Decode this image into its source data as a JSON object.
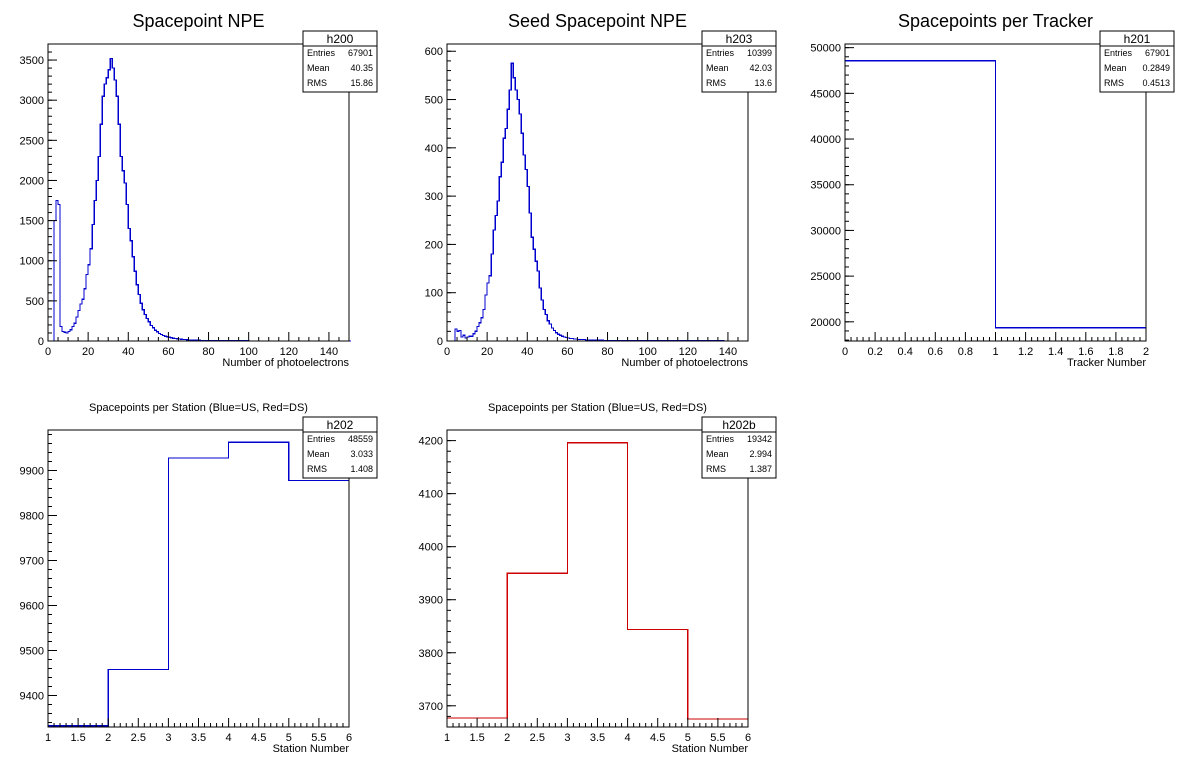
{
  "chart_data": [
    {
      "type": "histogram",
      "title": "Spacepoint NPE",
      "xlabel": "Number of photoelectrons",
      "ylabel": "",
      "xlim": [
        0,
        150
      ],
      "ylim": [
        0,
        3700
      ],
      "xticks": [
        "0",
        "20",
        "40",
        "60",
        "80",
        "100",
        "120",
        "140"
      ],
      "yticks": [
        "0",
        "500",
        "1000",
        "1500",
        "2000",
        "2500",
        "3000",
        "3500"
      ],
      "line_color": "#0000cc",
      "bin_width": 1.0,
      "x_start": 0,
      "values": [
        0,
        0,
        0,
        1500,
        1750,
        1700,
        180,
        120,
        110,
        100,
        120,
        140,
        180,
        220,
        300,
        380,
        460,
        520,
        650,
        830,
        950,
        1150,
        1450,
        1750,
        2000,
        2300,
        2700,
        3050,
        3200,
        3280,
        3380,
        3520,
        3400,
        3250,
        3050,
        2700,
        2300,
        2120,
        1970,
        1700,
        1400,
        1250,
        1050,
        870,
        700,
        580,
        470,
        390,
        330,
        280,
        240,
        195,
        165,
        135,
        115,
        95,
        82,
        70,
        60,
        52,
        46,
        40,
        35,
        31,
        28,
        25,
        22,
        20,
        18,
        16,
        14,
        13,
        12,
        11,
        10,
        9,
        8,
        8,
        7,
        6,
        6,
        5,
        5,
        4,
        4,
        4,
        3,
        3,
        3,
        3,
        2,
        2,
        2,
        2,
        2,
        2,
        2,
        2,
        2,
        2,
        1,
        1,
        1,
        1,
        1,
        1,
        1,
        1,
        1,
        1,
        1,
        1,
        1,
        1,
        1,
        1,
        1,
        1,
        1,
        1,
        1,
        1,
        1,
        1,
        1,
        1,
        1,
        1,
        1,
        1,
        1,
        1,
        1,
        1,
        1,
        1,
        1,
        1,
        1,
        1,
        0,
        0,
        0,
        0,
        0,
        0,
        0,
        0,
        0,
        0,
        0
      ],
      "stats": {
        "name": "h200",
        "entries": "67901",
        "mean": "40.35",
        "rms": "15.86"
      }
    },
    {
      "type": "histogram",
      "title": "Seed Spacepoint NPE",
      "xlabel": "Number of photoelectrons",
      "ylabel": "",
      "xlim": [
        0,
        150
      ],
      "ylim": [
        0,
        615
      ],
      "xticks": [
        "0",
        "20",
        "40",
        "60",
        "80",
        "100",
        "120",
        "140"
      ],
      "yticks": [
        "0",
        "100",
        "200",
        "300",
        "400",
        "500",
        "600"
      ],
      "line_color": "#0000cc",
      "bin_width": 1.0,
      "x_start": 0,
      "values": [
        0,
        0,
        0,
        0,
        25,
        20,
        22,
        8,
        12,
        6,
        8,
        10,
        10,
        15,
        20,
        30,
        38,
        48,
        65,
        95,
        120,
        135,
        180,
        230,
        260,
        290,
        340,
        370,
        420,
        440,
        480,
        520,
        575,
        545,
        520,
        500,
        470,
        430,
        385,
        355,
        320,
        265,
        215,
        190,
        165,
        145,
        110,
        85,
        65,
        55,
        42,
        35,
        27,
        22,
        17,
        14,
        12,
        10,
        8,
        7,
        6,
        5,
        5,
        4,
        4,
        3,
        3,
        3,
        3,
        2,
        2,
        2,
        2,
        2,
        2,
        2,
        2,
        2,
        1,
        1,
        1,
        1,
        1,
        1,
        1,
        1,
        1,
        1,
        1,
        1,
        1,
        1,
        1,
        1,
        1,
        1,
        1,
        1,
        1,
        1,
        1,
        1,
        1,
        1,
        1,
        1,
        1,
        1,
        1,
        1,
        1,
        1,
        1,
        1,
        1,
        1,
        1,
        1,
        1,
        1,
        1,
        1,
        1,
        1,
        1,
        1,
        1,
        1,
        1,
        1,
        1,
        1,
        1,
        1,
        1,
        1,
        1,
        1,
        0,
        0,
        0,
        0,
        0,
        0,
        0,
        0,
        0,
        0,
        0,
        0
      ],
      "stats": {
        "name": "h203",
        "entries": "10399",
        "mean": "42.03",
        "rms": "13.6"
      }
    },
    {
      "type": "histogram",
      "title": "Spacepoints per Tracker",
      "xlabel": "Tracker Number",
      "ylabel": "",
      "xlim": [
        0,
        2
      ],
      "ylim": [
        17900,
        50400
      ],
      "xticks": [
        "0",
        "0.2",
        "0.4",
        "0.6",
        "0.8",
        "1",
        "1.2",
        "1.4",
        "1.6",
        "1.8",
        "2"
      ],
      "xtick_values": [
        0,
        0.2,
        0.4,
        0.6,
        0.8,
        1,
        1.2,
        1.4,
        1.6,
        1.8,
        2
      ],
      "yticks": [
        "20000",
        "25000",
        "30000",
        "35000",
        "40000",
        "45000",
        "50000"
      ],
      "line_color": "#0000cc",
      "bin_width": 1.0,
      "x_start": 0,
      "values": [
        48559,
        19342
      ],
      "stats": {
        "name": "h201",
        "entries": "67901",
        "mean": "0.2849",
        "rms": "0.4513"
      }
    },
    {
      "type": "histogram",
      "title": "Spacepoints per Station (Blue=US, Red=DS)",
      "xlabel": "Station Number",
      "ylabel": "",
      "xlim": [
        1,
        6
      ],
      "ylim": [
        9330,
        9990
      ],
      "xticks": [
        "1",
        "1.5",
        "2",
        "2.5",
        "3",
        "3.5",
        "4",
        "4.5",
        "5",
        "5.5",
        "6"
      ],
      "xtick_values": [
        1,
        1.5,
        2,
        2.5,
        3,
        3.5,
        4,
        4.5,
        5,
        5.5,
        6
      ],
      "yticks": [
        "9400",
        "9500",
        "9600",
        "9700",
        "9800",
        "9900"
      ],
      "line_color": "#0000cc",
      "bin_width": 1.0,
      "x_start": 1,
      "values": [
        9333,
        9458,
        9928,
        9963,
        9878
      ],
      "stats": {
        "name": "h202",
        "entries": "48559",
        "mean": "3.033",
        "rms": "1.408"
      }
    },
    {
      "type": "histogram",
      "title": "Spacepoints per Station (Blue=US, Red=DS)",
      "xlabel": "Station Number",
      "ylabel": "",
      "xlim": [
        1,
        6
      ],
      "ylim": [
        3660,
        4220
      ],
      "xticks": [
        "1",
        "1.5",
        "2",
        "2.5",
        "3",
        "3.5",
        "4",
        "4.5",
        "5",
        "5.5",
        "6"
      ],
      "xtick_values": [
        1,
        1.5,
        2,
        2.5,
        3,
        3.5,
        4,
        4.5,
        5,
        5.5,
        6
      ],
      "yticks": [
        "3700",
        "3800",
        "3900",
        "4000",
        "4100",
        "4200"
      ],
      "line_color": "#cc0000",
      "bin_width": 1.0,
      "x_start": 1,
      "values": [
        3677,
        3950,
        4196,
        3844,
        3675
      ],
      "stats": {
        "name": "h202b",
        "entries": "19342",
        "mean": "2.994",
        "rms": "1.387"
      }
    }
  ],
  "stats_labels": {
    "entries": "Entries",
    "mean": "Mean",
    "rms": "RMS"
  }
}
